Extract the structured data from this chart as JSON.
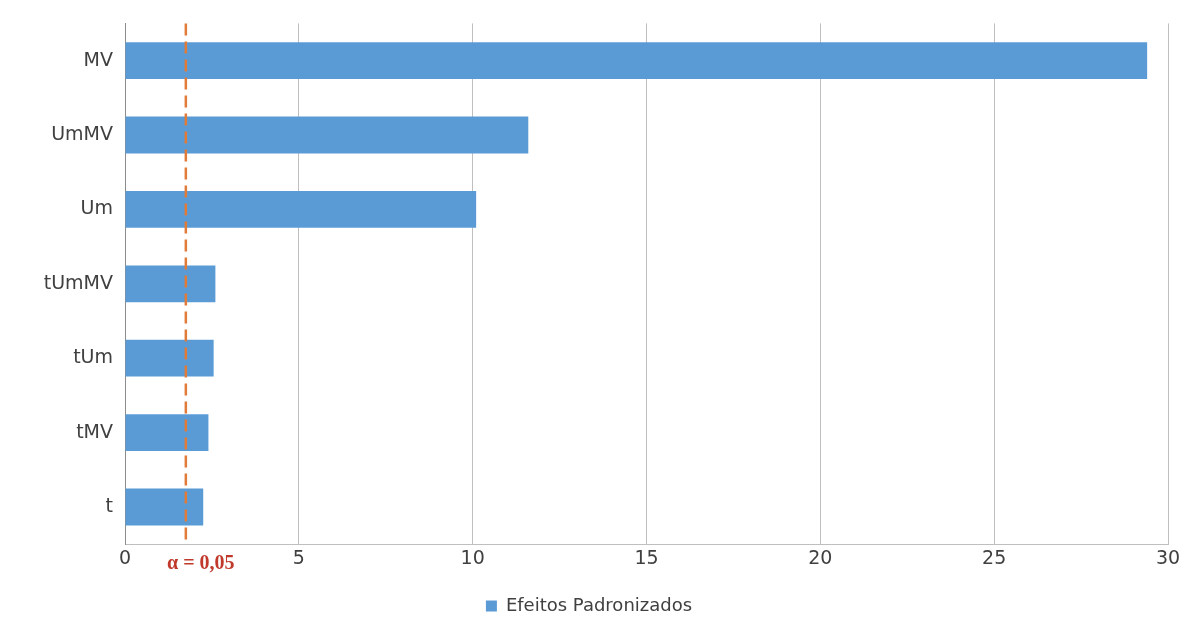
{
  "chart_data": {
    "type": "bar",
    "orientation": "horizontal",
    "categories": [
      "MV",
      "UmMV",
      "Um",
      "tUmMV",
      "tUm",
      "tMV",
      "t"
    ],
    "series": [
      {
        "name": "Efeitos Padronizados",
        "color": "#5b9bd5",
        "values": [
          29.4,
          11.6,
          10.1,
          2.6,
          2.55,
          2.4,
          2.25
        ]
      }
    ],
    "xlim": [
      0,
      30
    ],
    "xticks": [
      0,
      5,
      10,
      15,
      20,
      25,
      30
    ],
    "grid": "x",
    "legend": "bottom",
    "ref_lines": [
      {
        "axis": "x",
        "value": 1.75,
        "color": "#e07b39",
        "line_style": "dashed"
      }
    ],
    "annotations": [
      "α = 0,05"
    ]
  }
}
